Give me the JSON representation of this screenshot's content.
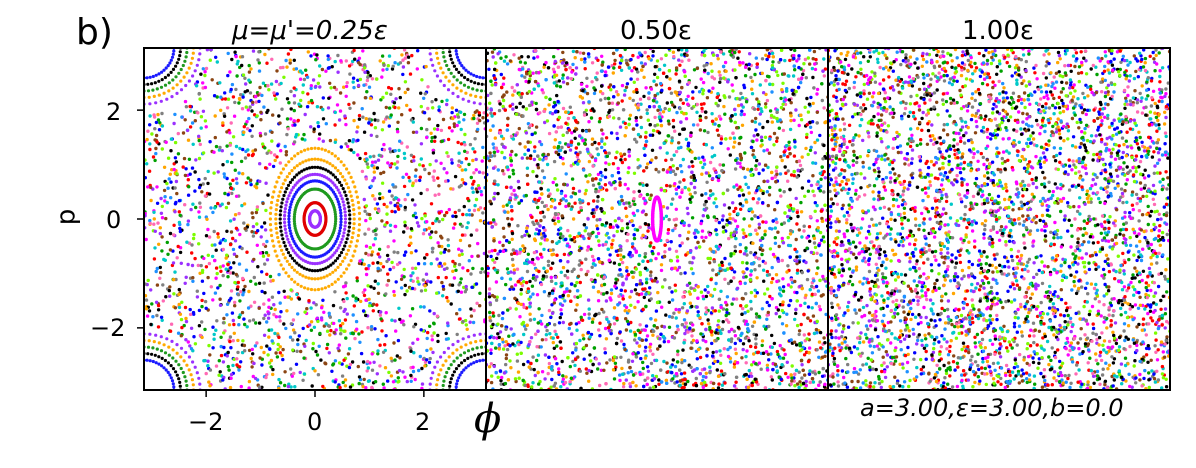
{
  "figure": {
    "panel_letter": "b)",
    "params_note": "a=3.00,ε=3.00,b=0.0",
    "xlabel": "ϕ",
    "ylabel": "p"
  },
  "chart_data": [
    {
      "type": "scatter",
      "title": "μ=μ'=0.25ε",
      "xlabel": "ϕ",
      "ylabel": "p",
      "xlim": [
        -3.14159,
        3.14159
      ],
      "ylim": [
        -3.14159,
        3.14159
      ],
      "xticks": [
        "−2",
        "0",
        "2"
      ],
      "yticks": [
        "2",
        "0",
        "−2"
      ],
      "xtick_values": [
        -2,
        0,
        2
      ],
      "ytick_values": [
        2,
        0,
        -2
      ],
      "regular_orbits": [
        {
          "rx": 0.1,
          "ry": 0.15,
          "color": "#9b30ff"
        },
        {
          "rx": 0.2,
          "ry": 0.3,
          "color": "#e00000"
        },
        {
          "rx": 0.38,
          "ry": 0.55,
          "color": "#1f9a1f"
        },
        {
          "rx": 0.48,
          "ry": 0.7,
          "color": "#1a1aff"
        },
        {
          "rx": 0.56,
          "ry": 0.82,
          "color": "#9b30ff"
        },
        {
          "rx": 0.64,
          "ry": 0.95,
          "color": "#000000"
        },
        {
          "rx": 0.72,
          "ry": 1.1,
          "color": "#ffaa00"
        },
        {
          "rx": 0.82,
          "ry": 1.3,
          "color": "#ffaa00"
        }
      ],
      "corner_islands": true,
      "chaotic_sea": true
    },
    {
      "type": "scatter",
      "title": "0.50ε",
      "xlim": [
        -3.14159,
        3.14159
      ],
      "ylim": [
        -3.14159,
        3.14159
      ],
      "regular_orbits": [
        {
          "rx": 0.08,
          "ry": 0.4,
          "color": "#ff00ff"
        }
      ],
      "chaotic_sea": true
    },
    {
      "type": "scatter",
      "title": "1.00ε",
      "xlim": [
        -3.14159,
        3.14159
      ],
      "ylim": [
        -3.14159,
        3.14159
      ],
      "regular_orbits": [],
      "chaotic_sea": true
    }
  ],
  "colors": {
    "palette": [
      "#ff0000",
      "#00a000",
      "#0000ff",
      "#ff00ff",
      "#00c8c8",
      "#ffa500",
      "#9b30ff",
      "#000000",
      "#7cfc00",
      "#ff69b4",
      "#8b4513",
      "#1e90ff",
      "#808080"
    ]
  }
}
